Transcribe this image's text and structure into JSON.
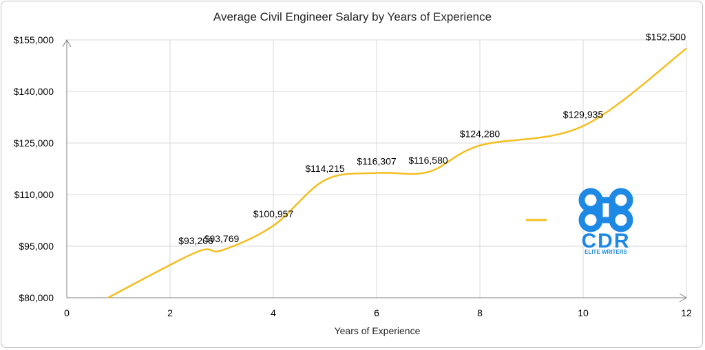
{
  "chart_data": {
    "type": "line",
    "title": "Average Civil Engineer Salary by Years of Experience",
    "xlabel": "Years of Experience",
    "ylabel": "",
    "xlim": [
      0,
      12
    ],
    "ylim": [
      80000,
      155000
    ],
    "x_ticks": [
      0,
      2,
      4,
      6,
      8,
      10,
      12
    ],
    "y_ticks": [
      80000,
      95000,
      110000,
      125000,
      140000,
      155000
    ],
    "y_tick_labels": [
      "$80,000",
      "$95,000",
      "$110,000",
      "$125,000",
      "$140,000",
      "$155,000"
    ],
    "grid": true,
    "smooth": true,
    "series": [
      {
        "color": "#f5bd1f",
        "x": [
          0.8,
          2.5,
          3,
          4,
          5,
          6,
          7,
          8,
          10,
          12
        ],
        "values": [
          80000,
          93206,
          93769,
          100957,
          114215,
          116307,
          116580,
          124280,
          129935,
          152500
        ],
        "data_labels": [
          "",
          "$93,206",
          "$93,769",
          "$100,957",
          "$114,215",
          "$116,307",
          "$116,580",
          "$124,280",
          "$129,935",
          "$152,500"
        ]
      }
    ]
  },
  "watermark": {
    "brand": "CDR",
    "tagline": "ELITE WRITERS",
    "color": "#1e88e5"
  }
}
